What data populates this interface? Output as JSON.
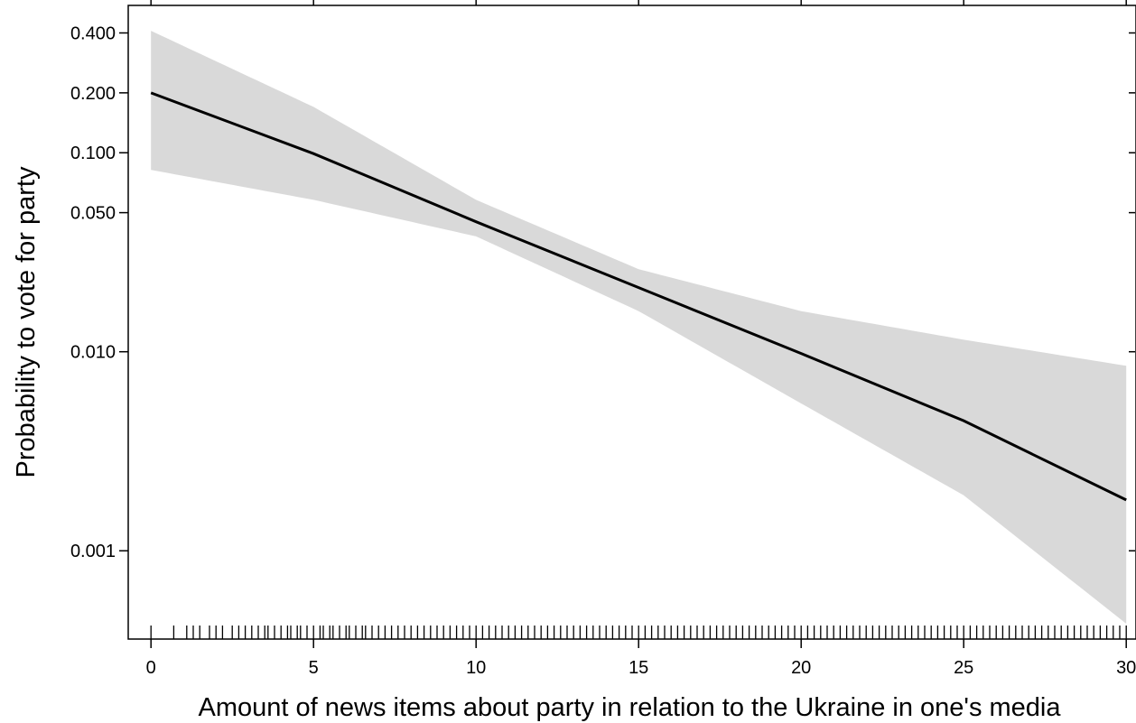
{
  "chart_data": {
    "type": "line",
    "title": "",
    "xlabel": "Amount of news items about party in relation to the Ukraine in one's media",
    "ylabel": "Probability to vote for party",
    "y_scale": "log",
    "xlim": [
      -0.7,
      30.3
    ],
    "ylim": [
      0.00036,
      0.55
    ],
    "x_ticks": [
      0,
      5,
      10,
      15,
      20,
      25,
      30
    ],
    "x_tick_labels": [
      "0",
      "5",
      "10",
      "15",
      "20",
      "25",
      "30"
    ],
    "y_ticks": [
      0.4,
      0.2,
      0.1,
      0.05,
      0.01,
      0.001
    ],
    "y_tick_labels": [
      "0.400",
      "0.200",
      "0.100",
      "0.050",
      "0.010",
      "0.001"
    ],
    "grid": false,
    "series": [
      {
        "x": [
          0,
          5,
          10,
          15,
          20,
          25,
          30
        ],
        "values": [
          0.2,
          0.099,
          0.045,
          0.021,
          0.0098,
          0.0045,
          0.0018
        ],
        "lower": [
          0.082,
          0.058,
          0.038,
          0.016,
          0.0055,
          0.0019,
          0.00043
        ],
        "upper": [
          0.41,
          0.17,
          0.058,
          0.026,
          0.016,
          0.0115,
          0.0085
        ]
      }
    ],
    "rug_x": [
      0,
      0.7,
      1.1,
      1.3,
      1.5,
      1.8,
      2.0,
      2.2,
      2.5,
      2.7,
      2.9,
      3.1,
      3.3,
      3.5,
      3.6,
      3.8,
      4.0,
      4.2,
      4.3,
      4.5,
      4.6,
      4.8,
      5.0,
      5.2,
      5.3,
      5.5,
      5.6,
      5.8,
      6.0,
      6.1,
      6.3,
      6.5,
      6.6,
      6.8,
      7.0,
      7.2,
      7.4,
      7.6,
      7.8,
      8.0,
      8.2,
      8.4,
      8.6,
      8.8,
      9.0,
      9.2,
      9.4,
      9.6,
      9.8,
      10.0,
      10.2,
      10.4,
      10.6,
      10.8,
      11.0,
      11.2,
      11.4,
      11.6,
      11.8,
      12.0,
      12.2,
      12.4,
      12.6,
      12.8,
      13.0,
      13.2,
      13.4,
      13.6,
      13.8,
      14.0,
      14.2,
      14.4,
      14.6,
      14.8,
      15.0,
      15.2,
      15.4,
      15.6,
      15.8,
      16.0,
      16.2,
      16.4,
      16.6,
      16.8,
      17.0,
      17.2,
      17.4,
      17.6,
      17.8,
      18.0,
      18.2,
      18.4,
      18.6,
      18.8,
      19.0,
      19.2,
      19.4,
      19.6,
      19.8,
      20.0,
      20.2,
      20.4,
      20.6,
      20.8,
      21.0,
      21.2,
      21.4,
      21.6,
      21.8,
      22.0,
      22.2,
      22.4,
      22.6,
      22.8,
      23.0,
      23.2,
      23.4,
      23.6,
      23.8,
      24.0,
      24.2,
      24.4,
      24.6,
      24.8,
      25.0,
      25.2,
      25.4,
      25.6,
      25.8,
      26.0,
      26.2,
      26.4,
      26.6,
      26.8,
      27.0,
      27.2,
      27.4,
      27.6,
      27.8,
      28.0,
      28.2,
      28.4,
      28.6,
      28.8,
      29.0,
      29.2,
      29.4,
      29.6,
      29.8,
      30.0
    ],
    "colors": {
      "line": "#000000",
      "band": "#d9d9d9",
      "axes": "#000000"
    }
  }
}
